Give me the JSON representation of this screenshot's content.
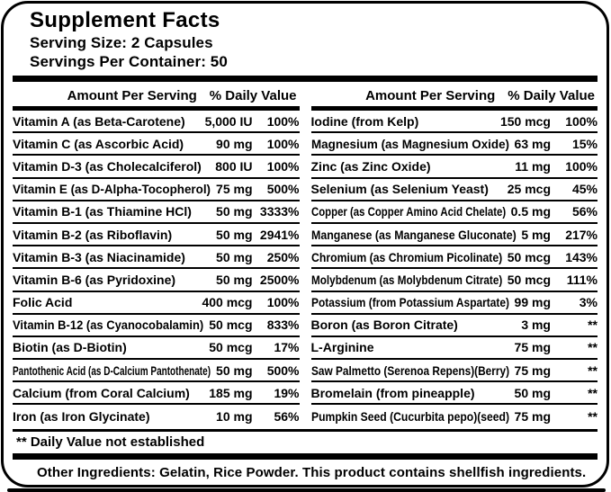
{
  "header": {
    "title": "Supplement Facts",
    "serving_size": "Serving Size: 2 Capsules",
    "servings_per_container": "Servings Per Container: 50"
  },
  "table": {
    "column_headers": {
      "amount": "Amount Per Serving",
      "daily_value": "% Daily Value"
    },
    "columns": [
      {
        "rows": [
          {
            "name": "Vitamin A (as Beta-Carotene)",
            "amount": "5,000 IU",
            "dv": "100%"
          },
          {
            "name": "Vitamin C (as Ascorbic Acid)",
            "amount": "90 mg",
            "dv": "100%"
          },
          {
            "name": "Vitamin D-3 (as Cholecalciferol)",
            "amount": "800 IU",
            "dv": "100%"
          },
          {
            "name": "Vitamin E (as D-Alpha-Tocopherol)",
            "amount": "75 mg",
            "dv": "500%"
          },
          {
            "name": "Vitamin B-1 (as Thiamine HCl)",
            "amount": "50 mg",
            "dv": "3333%"
          },
          {
            "name": "Vitamin B-2 (as Riboflavin)",
            "amount": "50 mg",
            "dv": "2941%"
          },
          {
            "name": "Vitamin B-3 (as Niacinamide)",
            "amount": "50 mg",
            "dv": "250%"
          },
          {
            "name": "Vitamin B-6 (as Pyridoxine)",
            "amount": "50 mg",
            "dv": "2500%"
          },
          {
            "name": "Folic Acid",
            "amount": "400 mcg",
            "dv": "100%"
          },
          {
            "name": "Vitamin B-12 (as Cyanocobalamin)",
            "amount": "50 mcg",
            "dv": "833%"
          },
          {
            "name": "Biotin (as D-Biotin)",
            "amount": "50 mcg",
            "dv": "17%"
          },
          {
            "name": "Pantothenic Acid (as D-Calcium Pantothenate)",
            "amount": "50 mg",
            "dv": "500%"
          },
          {
            "name": "Calcium (from Coral Calcium)",
            "amount": "185 mg",
            "dv": "19%"
          },
          {
            "name": "Iron (as Iron Glycinate)",
            "amount": "10 mg",
            "dv": "56%"
          }
        ]
      },
      {
        "rows": [
          {
            "name": "Iodine (from Kelp)",
            "amount": "150 mcg",
            "dv": "100%"
          },
          {
            "name": "Magnesium (as Magnesium Oxide)",
            "amount": "63 mg",
            "dv": "15%"
          },
          {
            "name": "Zinc (as Zinc Oxide)",
            "amount": "11 mg",
            "dv": "100%"
          },
          {
            "name": "Selenium (as Selenium Yeast)",
            "amount": "25 mcg",
            "dv": "45%"
          },
          {
            "name": "Copper (as Copper Amino Acid Chelate)",
            "amount": "0.5 mg",
            "dv": "56%"
          },
          {
            "name": "Manganese (as Manganese Gluconate)",
            "amount": "5 mg",
            "dv": "217%"
          },
          {
            "name": "Chromium (as Chromium Picolinate)",
            "amount": "50 mcg",
            "dv": "143%"
          },
          {
            "name": "Molybdenum (as Molybdenum Citrate)",
            "amount": "50 mcg",
            "dv": "111%"
          },
          {
            "name": "Potassium (from Potassium Aspartate)",
            "amount": "99 mg",
            "dv": "3%"
          },
          {
            "name": "Boron (as Boron Citrate)",
            "amount": "3 mg",
            "dv": "**"
          },
          {
            "name": "L-Arginine",
            "amount": "75 mg",
            "dv": "**"
          },
          {
            "name": "Saw Palmetto (Serenoa Repens)(Berry)",
            "amount": "75 mg",
            "dv": "**"
          },
          {
            "name": "Bromelain (from pineapple)",
            "amount": "50 mg",
            "dv": "**"
          },
          {
            "name": "Pumpkin Seed (Cucurbita pepo)(seed)",
            "amount": "75 mg",
            "dv": "**"
          }
        ]
      }
    ]
  },
  "footnotes": {
    "daily_value": "** Daily Value not established",
    "other_ingredients": "Other Ingredients: Gelatin, Rice Powder. This product contains shellfish ingredients."
  },
  "colors": {
    "text": "#000000",
    "background": "#ffffff",
    "border": "#000000"
  }
}
